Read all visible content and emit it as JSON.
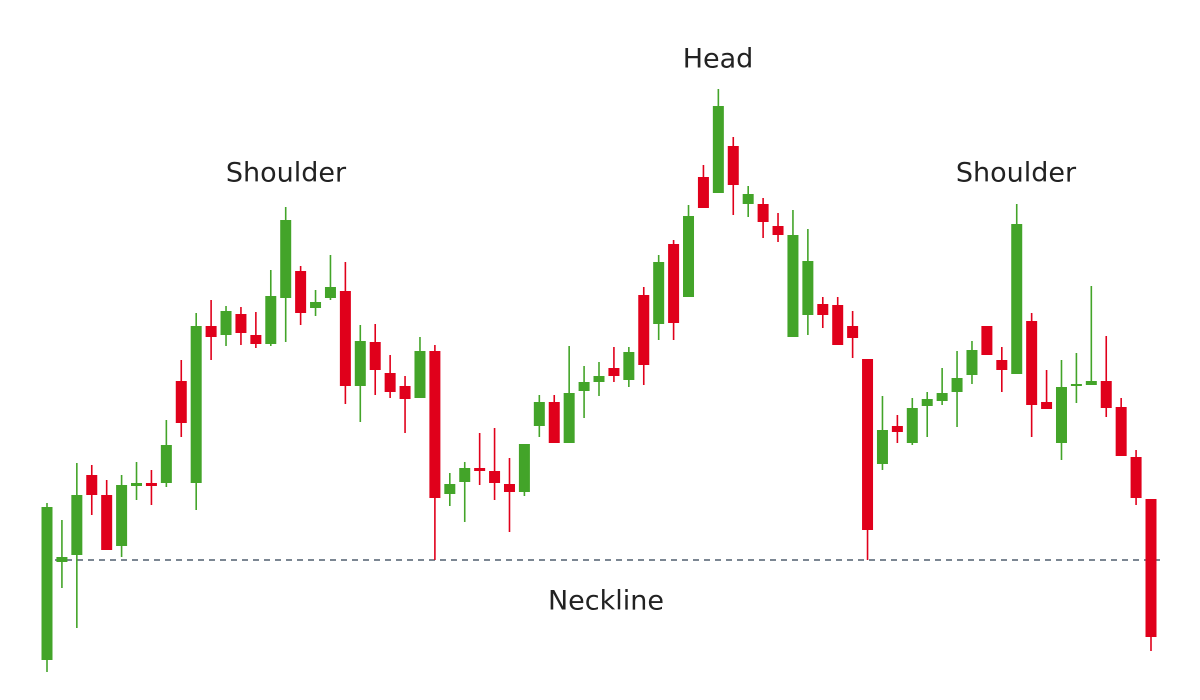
{
  "chart_data": {
    "type": "candlestick",
    "annotations": [
      "Shoulder",
      "Head",
      "Shoulder",
      "Neckline"
    ],
    "neckline": 136,
    "ylim": [
      0,
      696
    ],
    "up_color": "#43a429",
    "down_color": "#e0001b",
    "neckline_color": "#2c3e50",
    "open": [
      36,
      134,
      141,
      221,
      201,
      150,
      210,
      213,
      213,
      315,
      213,
      370,
      361,
      382,
      361,
      352,
      398,
      425,
      388,
      398,
      405,
      310,
      354,
      323,
      310,
      298,
      345,
      202,
      214,
      228,
      225,
      212,
      204,
      270,
      294,
      253,
      305,
      314,
      328,
      316,
      401,
      372,
      452,
      399,
      519,
      503,
      550,
      492,
      492,
      470,
      359,
      381,
      392,
      391,
      370,
      337,
      232,
      270,
      253,
      290,
      295,
      304,
      321,
      370,
      336,
      322,
      375,
      294,
      253,
      310,
      311,
      315,
      289,
      239,
      197
    ],
    "high": [
      193,
      176,
      233,
      231,
      216,
      221,
      234,
      226,
      276,
      336,
      383,
      396,
      390,
      389,
      384,
      426,
      489,
      430,
      406,
      441,
      434,
      371,
      372,
      341,
      320,
      359,
      351,
      223,
      234,
      263,
      268,
      238,
      252,
      301,
      301,
      350,
      330,
      334,
      349,
      349,
      409,
      441,
      456,
      491,
      531,
      607,
      559,
      510,
      498,
      483,
      486,
      467,
      399,
      399,
      385,
      337,
      300,
      281,
      298,
      304,
      328,
      345,
      355,
      370,
      349,
      492,
      383,
      326,
      336,
      343,
      410,
      360,
      298,
      246,
      197
    ],
    "low": [
      24,
      108,
      68,
      181,
      146,
      139,
      196,
      191,
      209,
      259,
      186,
      336,
      350,
      351,
      348,
      350,
      354,
      371,
      380,
      396,
      292,
      274,
      301,
      298,
      263,
      298,
      136,
      190,
      174,
      211,
      196,
      164,
      200,
      259,
      253,
      253,
      278,
      300,
      314,
      309,
      311,
      356,
      356,
      399,
      488,
      503,
      481,
      479,
      458,
      454,
      359,
      361,
      368,
      351,
      338,
      136,
      226,
      253,
      251,
      259,
      291,
      269,
      312,
      341,
      304,
      322,
      259,
      287,
      236,
      293,
      311,
      279,
      240,
      191,
      45
    ],
    "close": [
      189,
      139,
      201,
      201,
      146,
      211,
      213,
      210,
      251,
      273,
      370,
      359,
      385,
      363,
      352,
      400,
      476,
      383,
      394,
      409,
      310,
      355,
      326,
      304,
      297,
      345,
      198,
      212,
      228,
      225,
      213,
      204,
      252,
      294,
      253,
      303,
      314,
      320,
      320,
      344,
      331,
      434,
      373,
      480,
      488,
      590,
      511,
      502,
      474,
      461,
      461,
      435,
      381,
      351,
      358,
      166,
      266,
      264,
      288,
      297,
      303,
      318,
      346,
      341,
      326,
      472,
      291,
      287,
      309,
      312,
      315,
      288,
      240,
      198,
      59
    ]
  }
}
